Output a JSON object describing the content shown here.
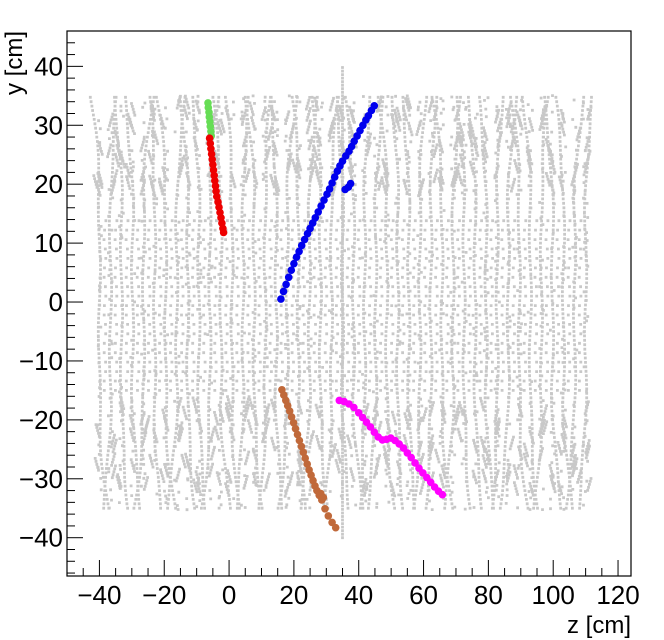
{
  "chart_data": {
    "type": "scatter",
    "title": "",
    "xlabel": "z [cm]",
    "ylabel": "y [cm]",
    "xlim": [
      -50,
      124
    ],
    "ylim": [
      -46.5,
      46
    ],
    "x_ticks": [
      -40,
      -20,
      0,
      20,
      40,
      60,
      80,
      100,
      120
    ],
    "y_ticks": [
      -40,
      -30,
      -20,
      -10,
      0,
      10,
      20,
      30,
      40
    ],
    "x_tick_labels": [
      "−40",
      "−20",
      "0",
      "20",
      "40",
      "60",
      "80",
      "100",
      "120"
    ],
    "y_tick_labels": [
      "−40",
      "−30",
      "−20",
      "−10",
      "0",
      "10",
      "20",
      "30",
      "40"
    ],
    "grid": false,
    "background_hits": {
      "color": "#c8c8c8",
      "z_range": [
        -40,
        110
      ],
      "y_range": [
        -35,
        35
      ],
      "columns": 45,
      "central_line": {
        "z": 35,
        "y_range": [
          -40,
          40
        ]
      }
    },
    "series": [
      {
        "color": "#0000ee",
        "points": [
          [
            16,
            0.5
          ],
          [
            16.8,
            1.8
          ],
          [
            17.6,
            3
          ],
          [
            18.4,
            4.2
          ],
          [
            19.2,
            5.4
          ],
          [
            20,
            6.5
          ],
          [
            20.8,
            7.6
          ],
          [
            21.6,
            8.6
          ],
          [
            22.4,
            9.6
          ],
          [
            23.3,
            10.6
          ],
          [
            24.2,
            11.6
          ],
          [
            25,
            12.5
          ],
          [
            25.8,
            13.4
          ],
          [
            26.6,
            14.3
          ],
          [
            27.5,
            15.3
          ],
          [
            28.4,
            16.3
          ],
          [
            29.3,
            17.3
          ],
          [
            30.2,
            18.3
          ],
          [
            31,
            19.2
          ],
          [
            31.8,
            20.2
          ],
          [
            32.6,
            21.2
          ],
          [
            33.4,
            22.2
          ],
          [
            34.2,
            23.1
          ],
          [
            35,
            23.9
          ],
          [
            36,
            24.8
          ],
          [
            37,
            25.6
          ],
          [
            37.8,
            26.4
          ],
          [
            38.6,
            27.3
          ],
          [
            39.5,
            28.2
          ],
          [
            40.4,
            29.1
          ],
          [
            41.3,
            30
          ],
          [
            42.2,
            30.9
          ],
          [
            43,
            31.6
          ],
          [
            43.9,
            32.5
          ],
          [
            44.8,
            33.3
          ],
          [
            35.8,
            19.1
          ],
          [
            36.8,
            19.5
          ],
          [
            37.5,
            20.1
          ]
        ]
      },
      {
        "color": "#ff00ff",
        "points": [
          [
            34,
            -16.7
          ],
          [
            35.5,
            -16.9
          ],
          [
            37,
            -17.3
          ],
          [
            38.5,
            -17.9
          ],
          [
            40,
            -18.8
          ],
          [
            41.2,
            -19.6
          ],
          [
            42.4,
            -20.4
          ],
          [
            43.6,
            -21.2
          ],
          [
            44.8,
            -22.1
          ],
          [
            46,
            -22.9
          ],
          [
            47.3,
            -23.4
          ],
          [
            48.6,
            -23.3
          ],
          [
            49.9,
            -23.1
          ],
          [
            51.2,
            -23.5
          ],
          [
            52.5,
            -24.1
          ],
          [
            53.8,
            -24.8
          ],
          [
            55,
            -25.6
          ],
          [
            56.2,
            -26.4
          ],
          [
            57.4,
            -27.3
          ],
          [
            58.6,
            -28.2
          ],
          [
            59.8,
            -29
          ],
          [
            61,
            -29.8
          ],
          [
            62.2,
            -30.6
          ],
          [
            63.4,
            -31.4
          ],
          [
            64.6,
            -32.1
          ],
          [
            65.8,
            -32.7
          ]
        ]
      },
      {
        "color": "#c0693a",
        "points": [
          [
            16.3,
            -14.9
          ],
          [
            16.9,
            -15.8
          ],
          [
            17.5,
            -16.7
          ],
          [
            18.1,
            -17.6
          ],
          [
            18.7,
            -18.5
          ],
          [
            19.3,
            -19.5
          ],
          [
            19.9,
            -20.5
          ],
          [
            20.5,
            -21.5
          ],
          [
            21.1,
            -22.5
          ],
          [
            21.7,
            -23.5
          ],
          [
            22.3,
            -24.5
          ],
          [
            22.9,
            -25.5
          ],
          [
            23.5,
            -26.5
          ],
          [
            24.1,
            -27.5
          ],
          [
            24.7,
            -28.5
          ],
          [
            25.3,
            -29.4
          ],
          [
            25.9,
            -30.3
          ],
          [
            26.5,
            -31.2
          ],
          [
            27.1,
            -32
          ],
          [
            27.8,
            -32.8
          ],
          [
            28.6,
            -33.6
          ],
          [
            29.6,
            -35.1
          ],
          [
            30.6,
            -36.3
          ],
          [
            31.8,
            -37.4
          ],
          [
            32.9,
            -38.3
          ],
          [
            28.3,
            -32.5
          ],
          [
            29.1,
            -33.2
          ]
        ]
      },
      {
        "color": "#66dd55",
        "points": [
          [
            -6.5,
            33.8
          ],
          [
            -6.4,
            33
          ],
          [
            -6.2,
            32.2
          ],
          [
            -6.1,
            31.4
          ],
          [
            -5.9,
            30.6
          ],
          [
            -5.8,
            29.8
          ],
          [
            -5.6,
            29
          ],
          [
            -5.5,
            28.2
          ]
        ]
      },
      {
        "color": "#ee0000",
        "points": [
          [
            -6,
            27.8
          ],
          [
            -5.8,
            26.9
          ],
          [
            -5.6,
            26
          ],
          [
            -5.4,
            25.1
          ],
          [
            -5.2,
            24.2
          ],
          [
            -5,
            23.3
          ],
          [
            -4.8,
            22.4
          ],
          [
            -4.6,
            21.5
          ],
          [
            -4.4,
            20.6
          ],
          [
            -4.2,
            19.7
          ],
          [
            -4,
            18.8
          ],
          [
            -3.8,
            17.9
          ],
          [
            -3.4,
            17
          ],
          [
            -3.1,
            16.1
          ],
          [
            -2.8,
            15.2
          ],
          [
            -2.5,
            14.3
          ],
          [
            -2.2,
            13.4
          ],
          [
            -1.9,
            12.5
          ],
          [
            -1.7,
            11.8
          ]
        ]
      }
    ]
  }
}
